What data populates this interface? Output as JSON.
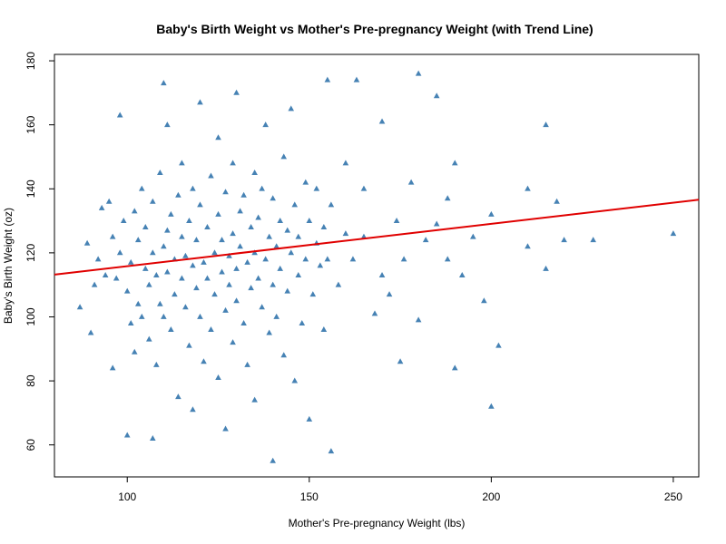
{
  "chart_data": {
    "type": "scatter",
    "title": "Baby's Birth Weight vs Mother's Pre-pregnancy Weight (with Trend Line)",
    "xlabel": "Mother's Pre-pregnancy Weight (lbs)",
    "ylabel": "Baby's Birth Weight (oz)",
    "xlim": [
      80,
      257
    ],
    "ylim": [
      50,
      182
    ],
    "xticks": [
      100,
      150,
      200,
      250
    ],
    "yticks": [
      60,
      80,
      100,
      120,
      140,
      160,
      180
    ],
    "grid": false,
    "marker": "filled-triangle",
    "colors": {
      "points": "#4682B4",
      "trend_line": "#E00000"
    },
    "trend_line": {
      "x": [
        80,
        257
      ],
      "y": [
        113.2,
        136.6
      ]
    },
    "series": [
      {
        "points": [
          [
            87,
            103
          ],
          [
            89,
            123
          ],
          [
            90,
            95
          ],
          [
            91,
            110
          ],
          [
            92,
            118
          ],
          [
            93,
            134
          ],
          [
            94,
            113
          ],
          [
            95,
            136
          ],
          [
            96,
            84
          ],
          [
            96,
            125
          ],
          [
            97,
            112
          ],
          [
            98,
            120
          ],
          [
            98,
            163
          ],
          [
            99,
            130
          ],
          [
            100,
            63
          ],
          [
            100,
            108
          ],
          [
            101,
            98
          ],
          [
            101,
            117
          ],
          [
            102,
            133
          ],
          [
            102,
            89
          ],
          [
            103,
            124
          ],
          [
            103,
            104
          ],
          [
            104,
            140
          ],
          [
            104,
            100
          ],
          [
            105,
            115
          ],
          [
            105,
            128
          ],
          [
            106,
            93
          ],
          [
            106,
            110
          ],
          [
            107,
            120
          ],
          [
            107,
            62
          ],
          [
            107,
            136
          ],
          [
            108,
            113
          ],
          [
            108,
            85
          ],
          [
            109,
            104
          ],
          [
            109,
            145
          ],
          [
            110,
            122
          ],
          [
            110,
            173
          ],
          [
            110,
            100
          ],
          [
            111,
            114
          ],
          [
            111,
            127
          ],
          [
            111,
            160
          ],
          [
            112,
            96
          ],
          [
            112,
            132
          ],
          [
            113,
            118
          ],
          [
            113,
            107
          ],
          [
            114,
            138
          ],
          [
            114,
            75
          ],
          [
            115,
            125
          ],
          [
            115,
            112
          ],
          [
            115,
            148
          ],
          [
            116,
            103
          ],
          [
            116,
            119
          ],
          [
            117,
            130
          ],
          [
            117,
            91
          ],
          [
            118,
            116
          ],
          [
            118,
            140
          ],
          [
            118,
            71
          ],
          [
            119,
            109
          ],
          [
            119,
            124
          ],
          [
            120,
            135
          ],
          [
            120,
            100
          ],
          [
            120,
            167
          ],
          [
            121,
            117
          ],
          [
            121,
            86
          ],
          [
            122,
            128
          ],
          [
            122,
            112
          ],
          [
            123,
            144
          ],
          [
            123,
            96
          ],
          [
            124,
            120
          ],
          [
            124,
            107
          ],
          [
            125,
            132
          ],
          [
            125,
            81
          ],
          [
            125,
            156
          ],
          [
            126,
            114
          ],
          [
            126,
            124
          ],
          [
            127,
            139
          ],
          [
            127,
            102
          ],
          [
            127,
            65
          ],
          [
            128,
            119
          ],
          [
            128,
            110
          ],
          [
            129,
            148
          ],
          [
            129,
            126
          ],
          [
            129,
            92
          ],
          [
            130,
            170
          ],
          [
            130,
            115
          ],
          [
            130,
            105
          ],
          [
            131,
            133
          ],
          [
            131,
            122
          ],
          [
            132,
            98
          ],
          [
            132,
            138
          ],
          [
            133,
            117
          ],
          [
            133,
            85
          ],
          [
            134,
            128
          ],
          [
            134,
            109
          ],
          [
            135,
            145
          ],
          [
            135,
            120
          ],
          [
            135,
            74
          ],
          [
            136,
            112
          ],
          [
            136,
            131
          ],
          [
            137,
            103
          ],
          [
            137,
            140
          ],
          [
            138,
            160
          ],
          [
            138,
            118
          ],
          [
            139,
            125
          ],
          [
            139,
            95
          ],
          [
            140,
            110
          ],
          [
            140,
            137
          ],
          [
            140,
            55
          ],
          [
            141,
            122
          ],
          [
            141,
            100
          ],
          [
            142,
            130
          ],
          [
            142,
            115
          ],
          [
            143,
            150
          ],
          [
            143,
            88
          ],
          [
            144,
            127
          ],
          [
            144,
            108
          ],
          [
            145,
            165
          ],
          [
            145,
            120
          ],
          [
            146,
            135
          ],
          [
            146,
            80
          ],
          [
            147,
            113
          ],
          [
            147,
            125
          ],
          [
            148,
            98
          ],
          [
            149,
            142
          ],
          [
            149,
            118
          ],
          [
            150,
            130
          ],
          [
            150,
            68
          ],
          [
            151,
            107
          ],
          [
            152,
            123
          ],
          [
            152,
            140
          ],
          [
            153,
            116
          ],
          [
            154,
            96
          ],
          [
            154,
            128
          ],
          [
            155,
            174
          ],
          [
            155,
            118
          ],
          [
            156,
            58
          ],
          [
            156,
            135
          ],
          [
            158,
            110
          ],
          [
            160,
            126
          ],
          [
            160,
            148
          ],
          [
            162,
            118
          ],
          [
            163,
            174
          ],
          [
            165,
            125
          ],
          [
            165,
            140
          ],
          [
            168,
            101
          ],
          [
            170,
            161
          ],
          [
            170,
            113
          ],
          [
            172,
            107
          ],
          [
            174,
            130
          ],
          [
            175,
            86
          ],
          [
            176,
            118
          ],
          [
            178,
            142
          ],
          [
            180,
            176
          ],
          [
            180,
            99
          ],
          [
            182,
            124
          ],
          [
            185,
            169
          ],
          [
            185,
            129
          ],
          [
            188,
            137
          ],
          [
            188,
            118
          ],
          [
            190,
            148
          ],
          [
            190,
            84
          ],
          [
            192,
            113
          ],
          [
            195,
            125
          ],
          [
            198,
            105
          ],
          [
            200,
            72
          ],
          [
            200,
            132
          ],
          [
            202,
            91
          ],
          [
            210,
            140
          ],
          [
            210,
            122
          ],
          [
            215,
            160
          ],
          [
            215,
            115
          ],
          [
            218,
            136
          ],
          [
            220,
            124
          ],
          [
            228,
            124
          ],
          [
            250,
            126
          ]
        ]
      }
    ]
  }
}
